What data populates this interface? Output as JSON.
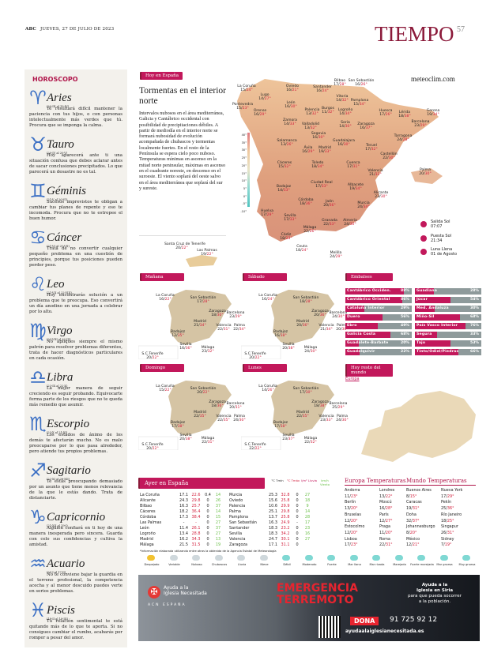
{
  "header": {
    "brand": "ABC",
    "date": "JUEVES, 27 DE JULIO DE 2023",
    "section": "TIEMPO",
    "page": "57"
  },
  "horoscope": {
    "title": "HOROSCOPO",
    "signs": [
      {
        "symbol": "♈",
        "name": "Aries",
        "dates": "(20-III al 19-IV)",
        "text": "Te resultará difícil mantener la paciencia con tus hijos, o con personas intelectualmente más verdes que tú. Procura que se imponga la calma."
      },
      {
        "symbol": "♉",
        "name": "Tauro",
        "dates": "(20-IV al 20-V)",
        "text": "Hoy aparecerá ante ti una situación confusa que debes aclarar antes de sacar conclusiones precipitados. Lo que parecerá un desastre no es tal."
      },
      {
        "symbol": "♊",
        "name": "Géminis",
        "dates": "(21-V al 20-VI)",
        "text": "Sucesos imprevistos te obligan a cambiar tus planes de repente y eso te incomoda. Procura que no te estropee el buen humor."
      },
      {
        "symbol": "♋",
        "name": "Cáncer",
        "dates": "(21-VI al 21-VII)",
        "text": "Trata de no convertir cualquier pequeño problema en una cuestión de principios, porque tus posiciones pueden perder peso."
      },
      {
        "symbol": "♌",
        "name": "Leo",
        "dates": "(21-VII al 22-VIII)",
        "text": "Hoy encontrarás solución a un problema que te preocupa. Eso convertirá un día anodino en una jornada a celebrar por lo alto."
      },
      {
        "symbol": "♍",
        "name": "Virgo",
        "dates": "(23-VIII al 22-IX)",
        "text": "No apliques siempre el mismo patrón para resolver problemas diferentes, trata de hacer diagnósticos particulares en cada ocasión."
      },
      {
        "symbol": "♎",
        "name": "Libra",
        "dates": "(23-IX al 22-X)",
        "text": "La mejor manera de seguir creciendo es seguir probando. Equivocarte forma parte de los riesgos que no te queda más remedio que asumir."
      },
      {
        "symbol": "♏",
        "name": "Escorpio",
        "dates": "(23-X al 21-XI)",
        "text": "Los estados de ánimo de los demás te afectarán mucho. No es malo preocuparse por lo que pasa alrededor, pero atiende tus propios problemas."
      },
      {
        "symbol": "♐",
        "name": "Sagitario",
        "dates": "(22-XI al 20-XII)",
        "text": "Te estás preocupando demasiado por un asunto que tiene menos relevancia de la que le estás dando. Trata de distanciarte."
      },
      {
        "symbol": "♑",
        "name": "Capricornio",
        "dates": "(21-XII al 19-I)",
        "text": "Alguien confiará en ti hoy de una manera inesperada pero sincera. Guarda con celo sus confidencias y cultiva la amistad."
      },
      {
        "symbol": "♒",
        "name": "Acuario",
        "dates": "(20-I al 17-II)",
        "text": "No te conviene bajar la guardia en el terreno profesional, la competencia acecha y al menor descuido puedes verte en serios problemas."
      },
      {
        "symbol": "♓",
        "name": "Piscis",
        "dates": "(18-II al 19-III)",
        "text": "Tu relación sentimental te está quitando más de lo que te aporta. Si no consigues cambiar el rumbo, acabarás por romper a pesar del amor."
      }
    ]
  },
  "today": {
    "tag": "Hoy en España",
    "title": "Tormentas en el interior norte",
    "body": "Intervalos nubosos en el área mediterránea, Galicia y Cantábrico occidental con posibilidad de precipitaciones débiles. A partir de mediodía en el interior norte se formará nubosidad de evolución acompañada de chubascos y tormentas localmente fuertes. En el resto de la Península se espera cielo poco nuboso. Temperaturas mínimas en ascenso en la mitad norte peninsular, máximas en ascenso en el cuadrante noreste, en descenso en el suroeste. El viento soplará del oeste salvo en el área mediterránea que soplará del sur y sureste."
  },
  "map": {
    "source": "meteoclim.com",
    "scale": [
      "40°",
      "35°",
      "30°",
      "25°",
      "20°",
      "15°",
      "10°",
      "5°",
      "0°",
      "-5°",
      "-10°"
    ],
    "cities": [
      {
        "name": "La Coruña",
        "min": "15",
        "max": "24°"
      },
      {
        "name": "Lugo",
        "min": "14",
        "max": "27°"
      },
      {
        "name": "Oviedo",
        "min": "16",
        "max": "21°"
      },
      {
        "name": "Santander",
        "min": "16",
        "max": "24°"
      },
      {
        "name": "Bilbao",
        "min": "17",
        "max": "28°"
      },
      {
        "name": "San Sebastián",
        "min": "16",
        "max": "26°"
      },
      {
        "name": "Pontevedra",
        "min": "15",
        "max": "23°"
      },
      {
        "name": "Orense",
        "min": "16",
        "max": "29°"
      },
      {
        "name": "León",
        "min": "16",
        "max": "30°"
      },
      {
        "name": "Palencia",
        "min": "13",
        "max": "32°"
      },
      {
        "name": "Burgos",
        "min": "11",
        "max": "32°"
      },
      {
        "name": "Vitoria",
        "min": "14",
        "max": "32°"
      },
      {
        "name": "Pamplona",
        "min": "15",
        "max": "34°"
      },
      {
        "name": "Logroño",
        "min": "14",
        "max": "34°"
      },
      {
        "name": "Huesca",
        "min": "17",
        "max": "26°"
      },
      {
        "name": "Lérida",
        "min": "18",
        "max": "38°"
      },
      {
        "name": "Gerona",
        "min": "19",
        "max": "34°"
      },
      {
        "name": "Zamora",
        "min": "14",
        "max": "33°"
      },
      {
        "name": "Valladolid",
        "min": "13",
        "max": "32°"
      },
      {
        "name": "Soria",
        "min": "14",
        "max": "30°"
      },
      {
        "name": "Zaragoza",
        "min": "16",
        "max": "37°"
      },
      {
        "name": "Barcelona",
        "min": "23",
        "max": "29°"
      },
      {
        "name": "Segovia",
        "min": "16",
        "max": "30°"
      },
      {
        "name": "Salamanca",
        "min": "13",
        "max": "26°"
      },
      {
        "name": "Guadalajara",
        "min": "16",
        "max": "30°"
      },
      {
        "name": "Teruel",
        "min": "17",
        "max": "32°"
      },
      {
        "name": "Tarragona",
        "min": "24",
        "max": "28°"
      },
      {
        "name": "Ávila",
        "min": "16",
        "max": "29°"
      },
      {
        "name": "Madrid",
        "min": "19",
        "max": "33°"
      },
      {
        "name": "Castellón",
        "min": "22",
        "max": "30°"
      },
      {
        "name": "Cáceres",
        "min": "15",
        "max": "32°"
      },
      {
        "name": "Toledo",
        "min": "18",
        "max": "34°"
      },
      {
        "name": "Cuenca",
        "min": "17",
        "max": "31°"
      },
      {
        "name": "Valencia",
        "min": "21",
        "max": "33°"
      },
      {
        "name": "Palma",
        "min": "20",
        "max": "30°"
      },
      {
        "name": "Badajoz",
        "min": "14",
        "max": "33°"
      },
      {
        "name": "Ciudad Real",
        "min": "17",
        "max": "33°"
      },
      {
        "name": "Albacete",
        "min": "19",
        "max": "34°"
      },
      {
        "name": "Alicante",
        "min": "23",
        "max": "30°"
      },
      {
        "name": "Córdoba",
        "min": "18",
        "max": "36°"
      },
      {
        "name": "Jaén",
        "min": "20",
        "max": "36°"
      },
      {
        "name": "Murcia",
        "min": "24",
        "max": "34°"
      },
      {
        "name": "Huelva",
        "min": "17",
        "max": "29°"
      },
      {
        "name": "Sevilla",
        "min": "17",
        "max": "33°"
      },
      {
        "name": "Granada",
        "min": "22",
        "max": "33°"
      },
      {
        "name": "Almería",
        "min": "24",
        "max": "30°"
      },
      {
        "name": "Málaga",
        "min": "22",
        "max": "26°"
      },
      {
        "name": "Cádiz",
        "min": "18",
        "max": "23°"
      },
      {
        "name": "Ceuta",
        "min": "18",
        "max": "24°"
      },
      {
        "name": "Melilla",
        "min": "24",
        "max": "29°"
      },
      {
        "name": "Santa Cruz de Tenerife",
        "min": "20",
        "max": "22°"
      },
      {
        "name": "Las Palmas",
        "min": "19",
        "max": "22°"
      }
    ],
    "sunrise_label": "Salida Sol",
    "sunrise": "07:07",
    "sunset_label": "Puesta Sol",
    "sunset": "21:34",
    "moon_label": "Luna Llena",
    "moon": "01 de Agosto"
  },
  "forecast": [
    {
      "day": "Mañana",
      "cities": [
        {
          "name": "La Coruña",
          "min": "16",
          "max": "22°"
        },
        {
          "name": "San Sebastián",
          "min": "17",
          "max": "28°"
        },
        {
          "name": "Zaragoza",
          "min": "18",
          "max": "30°"
        },
        {
          "name": "Barcelona",
          "min": "23",
          "max": "29°"
        },
        {
          "name": "Madrid",
          "min": "21",
          "max": "34°"
        },
        {
          "name": "Valencia",
          "min": "22",
          "max": "31°"
        },
        {
          "name": "Palma",
          "min": "22",
          "max": "34°"
        },
        {
          "name": "Badajoz",
          "min": "12",
          "max": "35°"
        },
        {
          "name": "Sevilla",
          "min": "16",
          "max": "36°"
        },
        {
          "name": "Málaga",
          "min": "23",
          "max": "32°"
        },
        {
          "name": "S.C.Tenerife",
          "min": "20",
          "max": "22°"
        }
      ]
    },
    {
      "day": "Sábado",
      "cities": [
        {
          "name": "La Coruña",
          "min": "16",
          "max": "24°"
        },
        {
          "name": "San Sebastián",
          "min": "18",
          "max": "28°"
        },
        {
          "name": "Zaragoza",
          "min": "20",
          "max": "36°"
        },
        {
          "name": "Barcelona",
          "min": "24",
          "max": "30°"
        },
        {
          "name": "Madrid",
          "min": "20",
          "max": "36°"
        },
        {
          "name": "Valencia",
          "min": "21",
          "max": "34°"
        },
        {
          "name": "Palma",
          "min": "20",
          "max": "30°"
        },
        {
          "name": "Badajoz",
          "min": "16",
          "max": "38°"
        },
        {
          "name": "Sevilla",
          "min": "20",
          "max": "38°"
        },
        {
          "name": "Málaga",
          "min": "24",
          "max": "30°"
        },
        {
          "name": "S.C.Tenerife",
          "min": "20",
          "max": "22°"
        }
      ]
    },
    {
      "day": "Domingo",
      "cities": [
        {
          "name": "La Coruña",
          "min": "15",
          "max": "22°"
        },
        {
          "name": "San Sebastián",
          "min": "20",
          "max": "22°"
        },
        {
          "name": "Zaragoza",
          "min": "18",
          "max": "36°"
        },
        {
          "name": "Barcelona",
          "min": "20",
          "max": "31°"
        },
        {
          "name": "Madrid",
          "min": "22",
          "max": "35°"
        },
        {
          "name": "Valencia",
          "min": "22",
          "max": "35°"
        },
        {
          "name": "Palma",
          "min": "24",
          "max": "30°"
        },
        {
          "name": "Badajoz",
          "min": "17",
          "max": "38°"
        },
        {
          "name": "Sevilla",
          "min": "20",
          "max": "38°"
        },
        {
          "name": "Málaga",
          "min": "22",
          "max": "31°"
        },
        {
          "name": "S.C.Tenerife",
          "min": "20",
          "max": "22°"
        }
      ]
    },
    {
      "day": "Lunes",
      "cities": [
        {
          "name": "La Coruña",
          "min": "14",
          "max": "26°"
        },
        {
          "name": "San Sebastián",
          "min": "17",
          "max": "30°"
        },
        {
          "name": "Zaragoza",
          "min": "18",
          "max": "38°"
        },
        {
          "name": "Barcelona",
          "min": "25",
          "max": "29°"
        },
        {
          "name": "Madrid",
          "min": "22",
          "max": "35°"
        },
        {
          "name": "Valencia",
          "min": "23",
          "max": "33°"
        },
        {
          "name": "Palma",
          "min": "24",
          "max": "30°"
        },
        {
          "name": "Badajoz",
          "min": "17",
          "max": "38°"
        },
        {
          "name": "Sevilla",
          "min": "23",
          "max": "37°"
        },
        {
          "name": "Málaga",
          "min": "22",
          "max": "32°"
        },
        {
          "name": "S.C.Tenerife",
          "min": "22",
          "max": "22°"
        }
      ]
    }
  ],
  "reservoirs": {
    "title": "Embalses",
    "items": [
      {
        "name": "Cantábrico Occiden.",
        "pct": 88
      },
      {
        "name": "Guadiana",
        "pct": 28
      },
      {
        "name": "Cantábrico Oriental",
        "pct": 86
      },
      {
        "name": "Júcar",
        "pct": 54
      },
      {
        "name": "Cataluña Interior",
        "pct": 29
      },
      {
        "name": "Med. Andaluza",
        "pct": 30
      },
      {
        "name": "Duero",
        "pct": 56
      },
      {
        "name": "Miño-Sil",
        "pct": 68
      },
      {
        "name": "Ebro",
        "pct": 49
      },
      {
        "name": "País Vasco Interior",
        "pct": 76
      },
      {
        "name": "Galicia Costa",
        "pct": 68
      },
      {
        "name": "Segura",
        "pct": 33
      },
      {
        "name": "Guadalete-Barbate",
        "pct": 20
      },
      {
        "name": "Tajo",
        "pct": 53
      },
      {
        "name": "Guadalquivir",
        "pct": 22
      },
      {
        "name": "Tinto/Odiel/Piedras",
        "pct": 66
      }
    ]
  },
  "world_today": {
    "tag": "Hoy resto del mundo",
    "region": "Europa"
  },
  "yesterday": {
    "tag": "Ayer en España",
    "headers": [
      "°C Tmín",
      "°C Tmáx",
      "l/m² Lluvia",
      "km/h Viento"
    ],
    "rows": [
      [
        "La Coruña",
        "17.1",
        "22.6",
        "0.4",
        "14"
      ],
      [
        "Alicante",
        "24.3",
        "29.8",
        "0",
        "26"
      ],
      [
        "Bilbao",
        "16.3",
        "25.7",
        "0",
        "37"
      ],
      [
        "Cáceres",
        "18.2",
        "36.4",
        "0",
        "14"
      ],
      [
        "Córdoba",
        "17.3",
        "38.4",
        "0",
        "15"
      ],
      [
        "Las Palmas",
        "-",
        "-",
        "0",
        "27"
      ],
      [
        "León",
        "11.4",
        "26.1",
        "0",
        "37"
      ],
      [
        "Logroño",
        "13.4",
        "28.8",
        "0",
        "27"
      ],
      [
        "Madrid",
        "16.2",
        "34.3",
        "0",
        "13"
      ],
      [
        "Málaga",
        "21.5",
        "31.5",
        "0",
        "19"
      ],
      [
        "Murcia",
        "25.3",
        "32.8",
        "0",
        "27"
      ],
      [
        "Oviedo",
        "15.6",
        "25.8",
        "0",
        "18"
      ],
      [
        "Palencia",
        "10.6",
        "29.9",
        "0",
        "9"
      ],
      [
        "Palma",
        "25.1",
        "29.8",
        "0",
        "14"
      ],
      [
        "Pamplona",
        "13.7",
        "25.8",
        "0",
        "28"
      ],
      [
        "San Sebastián",
        "16.3",
        "24.9",
        "-",
        "17"
      ],
      [
        "Santander",
        "18.3",
        "23.2",
        "0",
        "23"
      ],
      [
        "Sevilla",
        "18.3",
        "34.2",
        "0",
        "16"
      ],
      [
        "Valencia",
        "24.7",
        "30.1",
        "0",
        "27"
      ],
      [
        "Zaragoza",
        "17.1",
        "31.1",
        "0",
        ""
      ]
    ],
    "note": "*Información elaborada utilizando entre otras la obtenida de la Agencia Estatal de Meteorología"
  },
  "legend": [
    "Despejado",
    "Variable",
    "Nuboso",
    "Chubascos",
    "Lluvia",
    "Nieve",
    "Débil",
    "Moderado",
    "Fuerte",
    "Mar llana",
    "Mar rizada",
    "Marejada",
    "Fuerte marejada",
    "Mar gruesa",
    "Muy gruesa"
  ],
  "europe": {
    "title": "Europa Temperaturas",
    "cities": [
      {
        "name": "Andorra",
        "t": "11/",
        "mx": "23°"
      },
      {
        "name": "Londres",
        "t": "13/",
        "mx": "22°"
      },
      {
        "name": "Berlín",
        "t": "13/",
        "mx": "20°"
      },
      {
        "name": "Moscú",
        "t": "16/",
        "mx": "28°"
      },
      {
        "name": "Bruselas",
        "t": "12/",
        "mx": "20°"
      },
      {
        "name": "París",
        "t": "12/",
        "mx": "27°"
      },
      {
        "name": "Estocolmo",
        "t": "12/",
        "mx": "20°"
      },
      {
        "name": "Praga",
        "t": "11/",
        "mx": "20°"
      },
      {
        "name": "Lisboa",
        "t": "17/",
        "mx": "23°"
      },
      {
        "name": "Roma",
        "t": "22/",
        "mx": "31°"
      }
    ]
  },
  "world": {
    "title": "Mundo Temperaturas",
    "cities": [
      {
        "name": "Buenos Aires",
        "t": "8/",
        "mx": "15°"
      },
      {
        "name": "Nueva York",
        "t": "17/",
        "mx": "29°"
      },
      {
        "name": "Caracas",
        "t": "19/",
        "mx": "31°"
      },
      {
        "name": "Pekín",
        "t": "25/",
        "mx": "36°"
      },
      {
        "name": "Doha",
        "t": "32/",
        "mx": "37°"
      },
      {
        "name": "Río Janeiro",
        "t": "18/",
        "mx": "25°"
      },
      {
        "name": "Johannesburgo",
        "t": "8/",
        "mx": "20°"
      },
      {
        "name": "Singapur",
        "t": "26/",
        "mx": "31°"
      },
      {
        "name": "México",
        "t": "12/",
        "mx": "21°"
      },
      {
        "name": "Sidney",
        "t": "7/",
        "mx": "19°"
      }
    ]
  },
  "ad": {
    "org1": "Ayuda a la",
    "org2": "Iglesia Necesitada",
    "org3": "ACN ESPAÑA",
    "headline1": "EMERGENCIA",
    "headline2": "TERREMOTO",
    "side1": "Ayuda a la",
    "side2": "Iglesia en Siria",
    "side3": "para que pueda socorrer a la población.",
    "cta": "DONA",
    "phone": "91 725 92 12",
    "web": "ayudaalaiglesianecesitada.es"
  },
  "colors": {
    "accent": "#c2185b",
    "title": "#8b1a3a",
    "max_temp": "#d21f3c",
    "wind": "#6cc04a",
    "sign": "#3b6fc4"
  }
}
